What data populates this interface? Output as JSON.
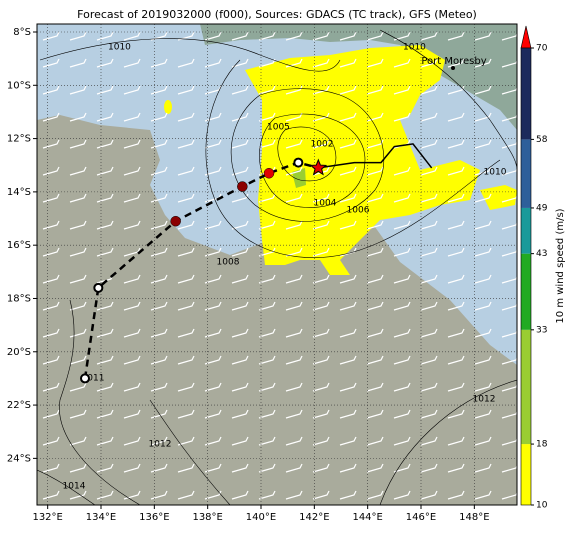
{
  "map": {
    "title": "Forecast of 2019032000 (f000), Sources: GDACS (TC track), GFS (Meteo)",
    "xlim": [
      131.6,
      149.6
    ],
    "ylim": [
      -25.75,
      -7.7
    ],
    "xticks": [
      {
        "value": 132,
        "label": "132°E"
      },
      {
        "value": 134,
        "label": "134°E"
      },
      {
        "value": 136,
        "label": "136°E"
      },
      {
        "value": 138,
        "label": "138°E"
      },
      {
        "value": 140,
        "label": "140°E"
      },
      {
        "value": 142,
        "label": "142°E"
      },
      {
        "value": 144,
        "label": "144°E"
      },
      {
        "value": 146,
        "label": "146°E"
      },
      {
        "value": 148,
        "label": "148°E"
      }
    ],
    "yticks": [
      {
        "value": -8,
        "label": "8°S"
      },
      {
        "value": -10,
        "label": "10°S"
      },
      {
        "value": -12,
        "label": "12°S"
      },
      {
        "value": -14,
        "label": "14°S"
      },
      {
        "value": -16,
        "label": "16°S"
      },
      {
        "value": -18,
        "label": "18°S"
      },
      {
        "value": -20,
        "label": "20°S"
      },
      {
        "value": -22,
        "label": "22°S"
      },
      {
        "value": -24,
        "label": "24°S"
      }
    ],
    "grid": true,
    "place": "Port Moresby",
    "contour_labels": [
      "1010",
      "1010",
      "1005",
      "1002",
      "1004",
      "1006",
      "1008",
      "1010",
      "1011",
      "1012",
      "1012",
      "1014"
    ],
    "track_past": {
      "lon": [
        133.4,
        133.9,
        136.8,
        139.3,
        140.3,
        141.4,
        142.15
      ],
      "lat": [
        -21.0,
        -17.6,
        -15.1,
        -13.8,
        -13.3,
        -12.9,
        -13.1
      ]
    },
    "track_forecast": {
      "lon": [
        142.15,
        143.5,
        144.5,
        145.0,
        145.7,
        146.4
      ],
      "lat": [
        -13.1,
        -12.9,
        -12.9,
        -12.3,
        -12.2,
        -13.1
      ]
    },
    "colorbar": {
      "label": "10 m wind speed (m/s)",
      "ticks": [
        10,
        18,
        33,
        43,
        49,
        58,
        70
      ],
      "colors": [
        "#ffff00",
        "#9acd32",
        "#22aa22",
        "#1a9a9a",
        "#2e5f9a",
        "#1c2a5c"
      ],
      "extend_color": "#ff0000"
    }
  }
}
